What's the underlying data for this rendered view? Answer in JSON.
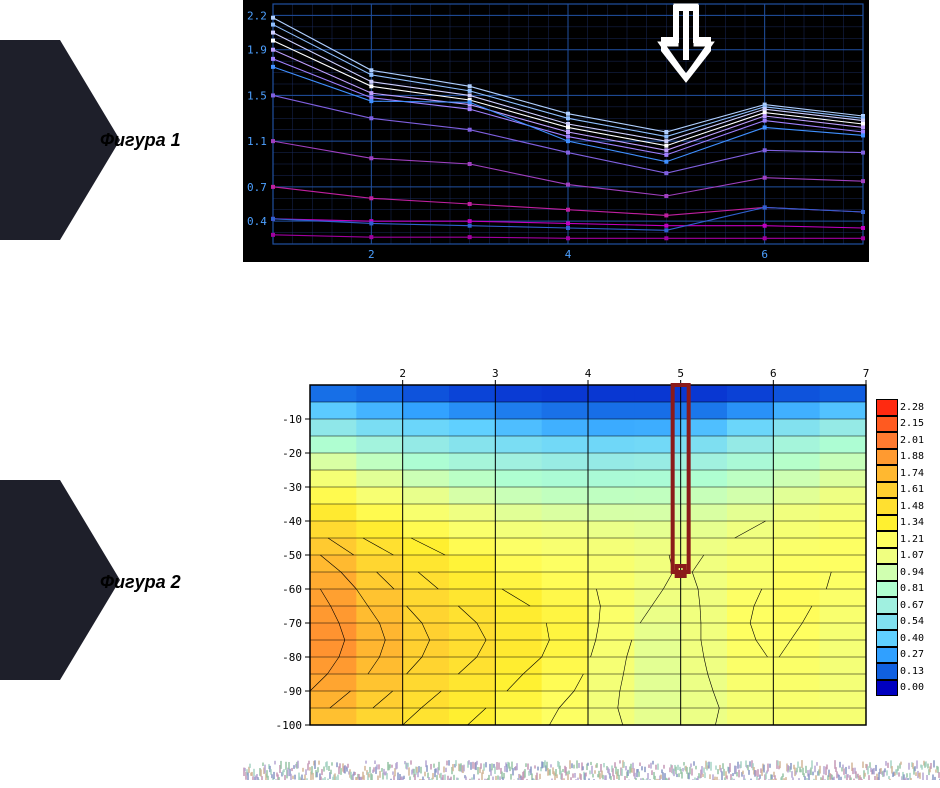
{
  "labels": {
    "figure1": "Фигура 1",
    "figure2": "Фигура 2"
  },
  "chart1": {
    "type": "line",
    "background": "#000000",
    "grid_color": "#1a2a5a",
    "axis_color": "#2050a0",
    "yticks": [
      0.4,
      0.7,
      1.1,
      1.5,
      1.9,
      2.2
    ],
    "ymin": 0.2,
    "ymax": 2.3,
    "xticks": [
      2,
      4,
      6
    ],
    "xmin": 1,
    "xmax": 7,
    "x_points": [
      1,
      2,
      3,
      4,
      5,
      6,
      7
    ],
    "tick_label_color": "#4da0ff",
    "tick_fontsize": 11,
    "arrow": {
      "x": 5.2,
      "color": "#ffffff",
      "stroke": 6
    },
    "series": [
      {
        "color": "#b0d0ff",
        "y": [
          2.18,
          1.72,
          1.58,
          1.34,
          1.18,
          1.42,
          1.32
        ]
      },
      {
        "color": "#90c0ff",
        "y": [
          2.12,
          1.68,
          1.54,
          1.3,
          1.14,
          1.4,
          1.3
        ]
      },
      {
        "color": "#d0d0ff",
        "y": [
          2.05,
          1.62,
          1.5,
          1.25,
          1.1,
          1.38,
          1.28
        ]
      },
      {
        "color": "#ffffff",
        "y": [
          1.98,
          1.58,
          1.46,
          1.22,
          1.06,
          1.35,
          1.25
        ]
      },
      {
        "color": "#c0a0ff",
        "y": [
          1.9,
          1.52,
          1.42,
          1.18,
          1.02,
          1.32,
          1.22
        ]
      },
      {
        "color": "#a080ff",
        "y": [
          1.82,
          1.48,
          1.38,
          1.14,
          0.98,
          1.28,
          1.18
        ]
      },
      {
        "color": "#4090ff",
        "y": [
          1.75,
          1.45,
          1.44,
          1.1,
          0.92,
          1.22,
          1.15
        ]
      },
      {
        "color": "#8060e0",
        "y": [
          1.5,
          1.3,
          1.2,
          1.0,
          0.82,
          1.02,
          1.0
        ]
      },
      {
        "color": "#a040c0",
        "y": [
          1.1,
          0.95,
          0.9,
          0.72,
          0.62,
          0.78,
          0.75
        ]
      },
      {
        "color": "#c020a0",
        "y": [
          0.7,
          0.6,
          0.55,
          0.5,
          0.45,
          0.52,
          0.48
        ]
      },
      {
        "color": "#c000c0",
        "y": [
          0.42,
          0.4,
          0.4,
          0.38,
          0.36,
          0.36,
          0.34
        ]
      },
      {
        "color": "#3060d0",
        "y": [
          0.42,
          0.38,
          0.36,
          0.34,
          0.32,
          0.52,
          0.48
        ]
      },
      {
        "color": "#a000a0",
        "y": [
          0.28,
          0.26,
          0.26,
          0.25,
          0.25,
          0.25,
          0.25
        ]
      }
    ]
  },
  "chart2": {
    "type": "heatmap",
    "xticks": [
      2,
      3,
      4,
      5,
      6,
      7
    ],
    "xmin": 1,
    "xmax": 7,
    "yticks": [
      -10,
      -20,
      -30,
      -40,
      -50,
      -60,
      -70,
      -80,
      -90,
      -100
    ],
    "y_rows": [
      0,
      -5,
      -10,
      -15,
      -20,
      -25,
      -30,
      -35,
      -40,
      -45,
      -50,
      -55,
      -60,
      -65,
      -70,
      -75,
      -80,
      -85,
      -90,
      -95,
      -100
    ],
    "ymin": -100,
    "ymax": 0,
    "axis_color": "#000000",
    "tick_fontsize": 11,
    "border": {
      "x": 5,
      "ytop": 0,
      "ybot": -55,
      "color": "#8b1a1a",
      "width": 4
    },
    "legend": [
      {
        "c": "#ff2a10",
        "v": "2.28"
      },
      {
        "c": "#ff5a20",
        "v": "2.15"
      },
      {
        "c": "#ff7a30",
        "v": "2.01"
      },
      {
        "c": "#ff9a30",
        "v": "1.88"
      },
      {
        "c": "#ffb830",
        "v": "1.74"
      },
      {
        "c": "#ffd030",
        "v": "1.61"
      },
      {
        "c": "#ffe030",
        "v": "1.48"
      },
      {
        "c": "#fff030",
        "v": "1.34"
      },
      {
        "c": "#ffff60",
        "v": "1.21"
      },
      {
        "c": "#f0ff80",
        "v": "1.07"
      },
      {
        "c": "#d0ffb0",
        "v": "0.94"
      },
      {
        "c": "#b0ffd0",
        "v": "0.81"
      },
      {
        "c": "#a0f0e0",
        "v": "0.67"
      },
      {
        "c": "#80e0f0",
        "v": "0.54"
      },
      {
        "c": "#60d0ff",
        "v": "0.40"
      },
      {
        "c": "#30a0ff",
        "v": "0.27"
      },
      {
        "c": "#1060e0",
        "v": "0.13"
      },
      {
        "c": "#0000c0",
        "v": "0.00"
      }
    ],
    "grid_y": [
      -10,
      -20,
      -30,
      -40,
      -50,
      -60,
      -70,
      -80,
      -90,
      -100
    ],
    "grid_x": [
      2,
      3,
      4,
      5,
      6,
      7
    ],
    "values": [
      [
        0.05,
        0.05,
        0.05,
        0.05,
        0.05,
        0.05,
        0.05,
        0.05,
        0.05,
        0.05,
        0.05,
        0.05,
        0.05
      ],
      [
        0.3,
        0.25,
        0.2,
        0.15,
        0.12,
        0.1,
        0.1,
        0.1,
        0.1,
        0.1,
        0.15,
        0.2,
        0.2
      ],
      [
        0.55,
        0.45,
        0.4,
        0.35,
        0.3,
        0.25,
        0.22,
        0.22,
        0.22,
        0.3,
        0.4,
        0.5,
        0.55
      ],
      [
        0.75,
        0.65,
        0.55,
        0.5,
        0.45,
        0.4,
        0.38,
        0.38,
        0.4,
        0.5,
        0.6,
        0.7,
        0.75
      ],
      [
        0.95,
        0.85,
        0.75,
        0.68,
        0.62,
        0.58,
        0.55,
        0.55,
        0.58,
        0.65,
        0.75,
        0.82,
        0.88
      ],
      [
        1.1,
        1.0,
        0.9,
        0.82,
        0.76,
        0.72,
        0.7,
        0.7,
        0.72,
        0.78,
        0.85,
        0.92,
        0.98
      ],
      [
        1.25,
        1.12,
        1.02,
        0.94,
        0.88,
        0.84,
        0.82,
        0.82,
        0.84,
        0.88,
        0.94,
        1.0,
        1.05
      ],
      [
        1.4,
        1.25,
        1.14,
        1.05,
        0.98,
        0.94,
        0.92,
        0.92,
        0.93,
        0.96,
        1.02,
        1.08,
        1.12
      ],
      [
        1.55,
        1.38,
        1.25,
        1.15,
        1.08,
        1.04,
        1.02,
        1.0,
        1.0,
        1.02,
        1.08,
        1.14,
        1.18
      ],
      [
        1.68,
        1.5,
        1.36,
        1.25,
        1.17,
        1.12,
        1.1,
        1.06,
        1.04,
        1.06,
        1.12,
        1.18,
        1.2
      ],
      [
        1.78,
        1.6,
        1.45,
        1.33,
        1.24,
        1.18,
        1.16,
        1.1,
        1.06,
        1.08,
        1.16,
        1.2,
        1.2
      ],
      [
        1.86,
        1.68,
        1.52,
        1.4,
        1.3,
        1.24,
        1.2,
        1.12,
        1.06,
        1.1,
        1.2,
        1.22,
        1.18
      ],
      [
        1.92,
        1.74,
        1.58,
        1.45,
        1.35,
        1.28,
        1.23,
        1.12,
        1.04,
        1.12,
        1.24,
        1.22,
        1.15
      ],
      [
        1.96,
        1.78,
        1.62,
        1.5,
        1.4,
        1.32,
        1.25,
        1.1,
        1.02,
        1.14,
        1.26,
        1.2,
        1.12
      ],
      [
        1.98,
        1.82,
        1.66,
        1.54,
        1.44,
        1.35,
        1.25,
        1.08,
        1.0,
        1.16,
        1.26,
        1.18,
        1.1
      ],
      [
        2.0,
        1.84,
        1.68,
        1.56,
        1.46,
        1.36,
        1.24,
        1.06,
        1.0,
        1.16,
        1.24,
        1.16,
        1.08
      ],
      [
        1.98,
        1.82,
        1.66,
        1.54,
        1.44,
        1.34,
        1.22,
        1.04,
        1.0,
        1.14,
        1.22,
        1.14,
        1.08
      ],
      [
        1.94,
        1.78,
        1.62,
        1.5,
        1.4,
        1.3,
        1.2,
        1.03,
        1.0,
        1.12,
        1.2,
        1.14,
        1.08
      ],
      [
        1.88,
        1.72,
        1.58,
        1.46,
        1.36,
        1.28,
        1.18,
        1.02,
        1.0,
        1.1,
        1.18,
        1.14,
        1.08
      ],
      [
        1.8,
        1.66,
        1.52,
        1.42,
        1.32,
        1.24,
        1.16,
        1.02,
        1.02,
        1.08,
        1.16,
        1.14,
        1.1
      ],
      [
        1.72,
        1.6,
        1.48,
        1.38,
        1.28,
        1.22,
        1.16,
        1.04,
        1.04,
        1.08,
        1.14,
        1.14,
        1.12
      ]
    ]
  }
}
